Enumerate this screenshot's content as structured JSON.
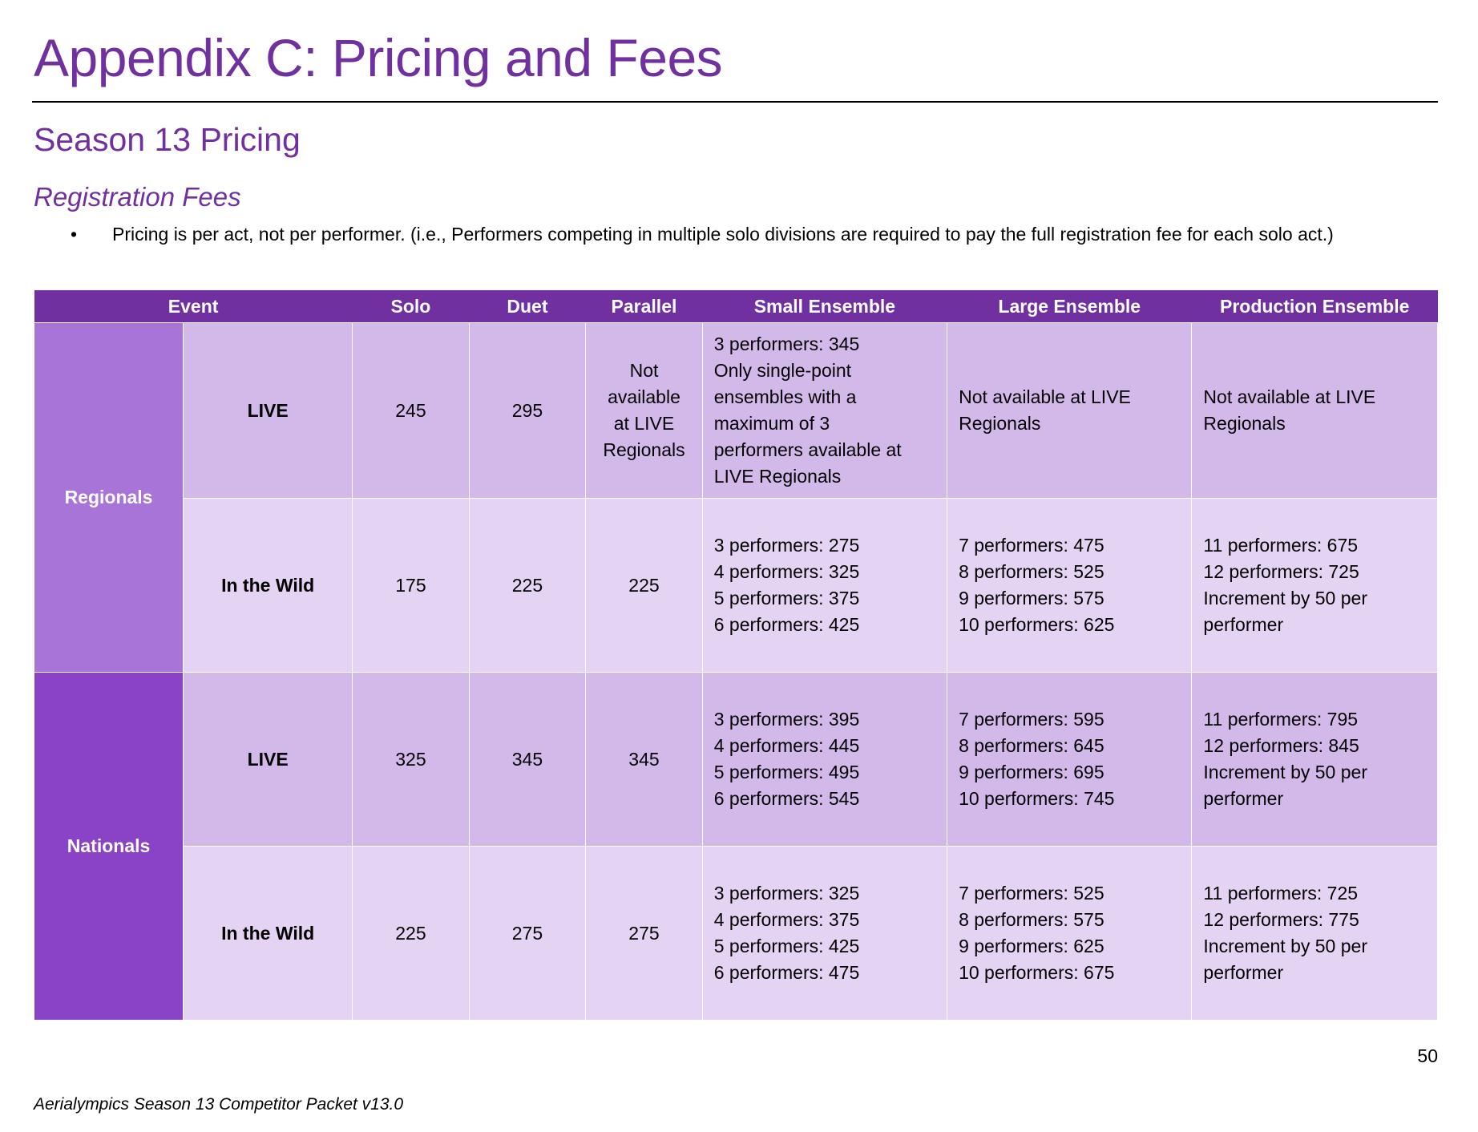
{
  "page": {
    "title": "Appendix C: Pricing and Fees",
    "section": "Season 13 Pricing",
    "subsection": "Registration Fees",
    "bullet": "Pricing is per act, not per performer. (i.e., Performers competing in multiple solo divisions are required to pay the full registration fee for each solo act.)",
    "page_number": "50",
    "footer": "Aerialympics Season 13 Competitor Packet v13.0"
  },
  "colors": {
    "accent": "#7030a0",
    "header_bg": "#7030a0",
    "regionals_bg": "#a974d8",
    "nationals_bg": "#8a42c6",
    "row_dark": "#d3b8ea",
    "row_light": "#e4d3f3"
  },
  "table": {
    "headers": [
      "Event",
      "Solo",
      "Duet",
      "Parallel",
      "Small Ensemble",
      "Large Ensemble",
      "Production Ensemble"
    ],
    "groups": [
      {
        "name": "Regionals",
        "rows": [
          {
            "mode": "LIVE",
            "solo": "245",
            "duet": "295",
            "parallel": [
              "Not",
              "available",
              "at LIVE",
              "Regionals"
            ],
            "small": [
              "3 performers: 345",
              "Only single-point",
              "ensembles with a",
              "maximum of 3",
              "performers available at",
              "LIVE Regionals"
            ],
            "large": [
              "Not available at LIVE",
              "Regionals"
            ],
            "production": [
              "Not available at LIVE",
              "Regionals"
            ]
          },
          {
            "mode": "In the Wild",
            "solo": "175",
            "duet": "225",
            "parallel": [
              "225"
            ],
            "small": [
              "3 performers: 275",
              "4 performers: 325",
              "5 performers: 375",
              "6 performers: 425"
            ],
            "large": [
              "7 performers: 475",
              "8 performers: 525",
              "9 performers: 575",
              "10 performers: 625"
            ],
            "production": [
              "11 performers: 675",
              "12 performers: 725",
              "Increment by 50 per",
              "performer"
            ]
          }
        ]
      },
      {
        "name": "Nationals",
        "rows": [
          {
            "mode": "LIVE",
            "solo": "325",
            "duet": "345",
            "parallel": [
              "345"
            ],
            "small": [
              "3 performers: 395",
              "4 performers: 445",
              "5 performers: 495",
              "6 performers: 545"
            ],
            "large": [
              "7 performers: 595",
              "8 performers: 645",
              "9 performers: 695",
              "10 performers: 745"
            ],
            "production": [
              "11 performers: 795",
              "12 performers: 845",
              "Increment by 50 per",
              "performer"
            ]
          },
          {
            "mode": "In the Wild",
            "solo": "225",
            "duet": "275",
            "parallel": [
              "275"
            ],
            "small": [
              "3 performers: 325",
              "4 performers: 375",
              "5 performers: 425",
              "6 performers: 475"
            ],
            "large": [
              "7 performers: 525",
              "8 performers: 575",
              "9 performers: 625",
              "10 performers: 675"
            ],
            "production": [
              "11 performers: 725",
              "12 performers: 775",
              "Increment by 50 per",
              "performer"
            ]
          }
        ]
      }
    ]
  }
}
